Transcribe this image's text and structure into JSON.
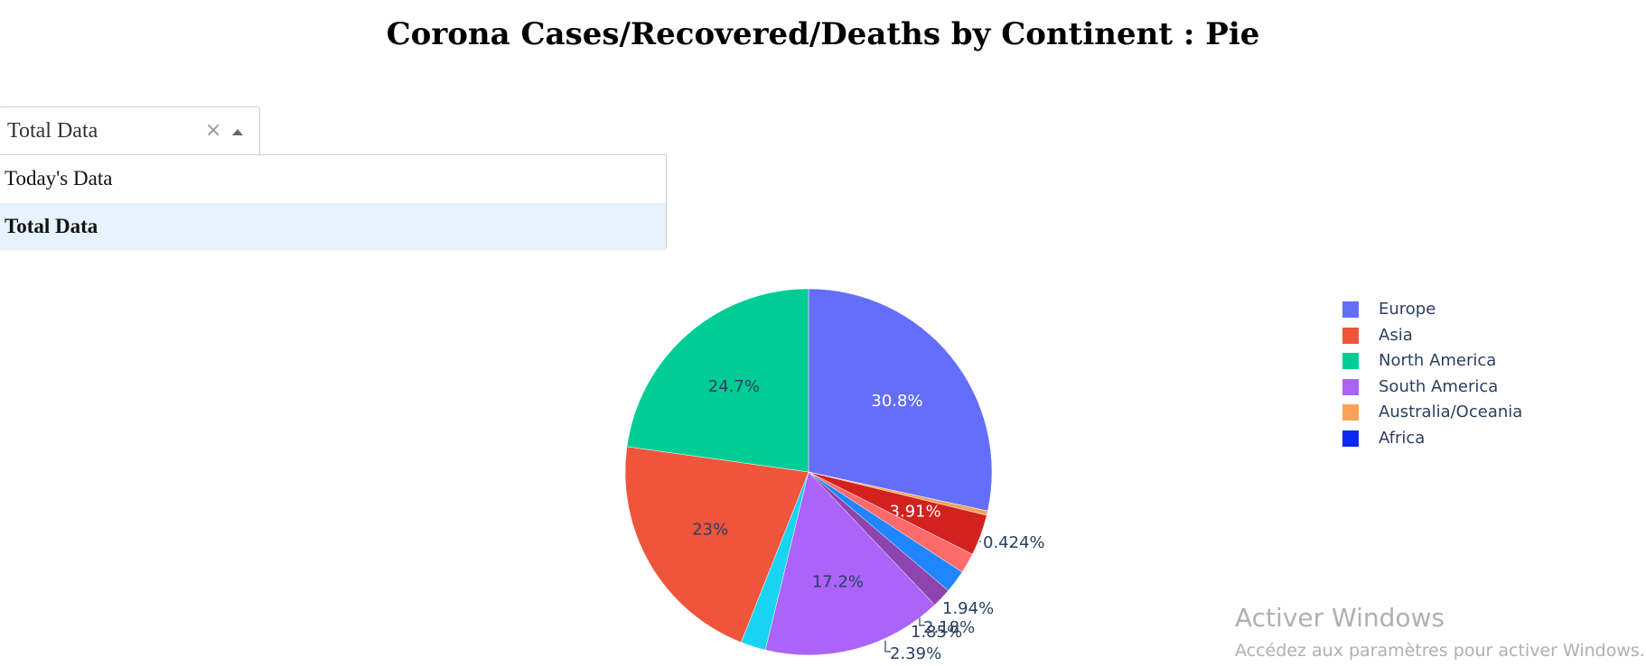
{
  "page": {
    "title": "Corona Cases/Recovered/Deaths by Continent : Pie"
  },
  "dropdown": {
    "value": "Total Data",
    "clear_symbol": "×",
    "options": [
      "Today's Data",
      "Total Data"
    ],
    "selected": "Total Data"
  },
  "chart_data": {
    "type": "pie",
    "title": "",
    "sort": "none",
    "start_angle_deg": 0,
    "direction": "clockwise",
    "slices": [
      {
        "label": "Europe",
        "value": 30.8,
        "text": "30.8%",
        "color": "#636efa"
      },
      {
        "label": "",
        "value": 0.424,
        "text": "0.424%",
        "color": "#fca15a"
      },
      {
        "label": "",
        "value": 3.91,
        "text": "3.91%",
        "color": "#d3211f"
      },
      {
        "label": "",
        "value": 1.94,
        "text": "1.94%",
        "color": "#fe6b6b"
      },
      {
        "label": "",
        "value": 2.18,
        "text": "2.18%",
        "color": "#1f86ff"
      },
      {
        "label": "",
        "value": 1.85,
        "text": "1.85%",
        "color": "#8e44ad"
      },
      {
        "label": "South America",
        "value": 17.2,
        "text": "17.2%",
        "color": "#ab63fa"
      },
      {
        "label": "",
        "value": 2.39,
        "text": "2.39%",
        "color": "#19d3f3"
      },
      {
        "label": "Asia",
        "value": 23.0,
        "text": "23%",
        "color": "#ef553b"
      },
      {
        "label": "North America",
        "value": 24.7,
        "text": "24.7%",
        "color": "#00cc96"
      }
    ],
    "legend": {
      "position": "right",
      "items": [
        {
          "label": "Europe",
          "color": "#636efa"
        },
        {
          "label": "Asia",
          "color": "#ef553b"
        },
        {
          "label": "North America",
          "color": "#00cc96"
        },
        {
          "label": "South America",
          "color": "#ab63fa"
        },
        {
          "label": "Australia/Oceania",
          "color": "#fca15a"
        },
        {
          "label": "Africa",
          "color": "#0d28f2"
        }
      ]
    }
  },
  "watermark": {
    "title": "Activer Windows",
    "subtitle": "Accédez aux paramètres pour activer Windows."
  }
}
